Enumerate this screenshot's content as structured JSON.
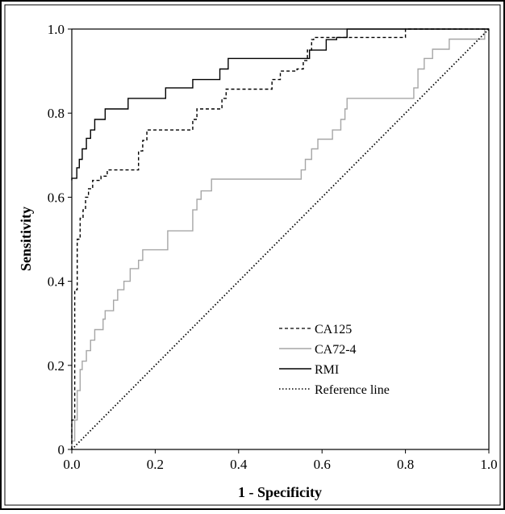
{
  "chart_data": {
    "type": "line",
    "title": "",
    "xlabel": "1 - Specificity",
    "ylabel": "Sensitivity",
    "xlim": [
      0,
      1
    ],
    "ylim": [
      0,
      1
    ],
    "xticks": [
      "0.0",
      "0.2",
      "0.4",
      "0.6",
      "0.8",
      "1.0"
    ],
    "yticks": [
      "0",
      "0.2",
      "0.4",
      "0.6",
      "0.8",
      "1.0"
    ],
    "xtick_values": [
      0,
      0.2,
      0.4,
      0.6,
      0.8,
      1.0
    ],
    "ytick_values": [
      0,
      0.2,
      0.4,
      0.6,
      0.8,
      1.0
    ],
    "grid": false,
    "legend_position": "bottom-right",
    "series": [
      {
        "name": "CA125",
        "style": "dashed",
        "color": "#000000",
        "points": [
          [
            0,
            0
          ],
          [
            0,
            0.07
          ],
          [
            0.007,
            0.07
          ],
          [
            0.007,
            0.38
          ],
          [
            0.013,
            0.38
          ],
          [
            0.013,
            0.5
          ],
          [
            0.02,
            0.5
          ],
          [
            0.02,
            0.55
          ],
          [
            0.027,
            0.55
          ],
          [
            0.027,
            0.57
          ],
          [
            0.033,
            0.57
          ],
          [
            0.033,
            0.6
          ],
          [
            0.04,
            0.6
          ],
          [
            0.04,
            0.62
          ],
          [
            0.05,
            0.62
          ],
          [
            0.05,
            0.64
          ],
          [
            0.07,
            0.64
          ],
          [
            0.07,
            0.65
          ],
          [
            0.085,
            0.65
          ],
          [
            0.085,
            0.665
          ],
          [
            0.16,
            0.665
          ],
          [
            0.16,
            0.71
          ],
          [
            0.17,
            0.71
          ],
          [
            0.17,
            0.735
          ],
          [
            0.18,
            0.735
          ],
          [
            0.18,
            0.76
          ],
          [
            0.29,
            0.76
          ],
          [
            0.29,
            0.785
          ],
          [
            0.3,
            0.785
          ],
          [
            0.3,
            0.81
          ],
          [
            0.36,
            0.81
          ],
          [
            0.36,
            0.835
          ],
          [
            0.37,
            0.835
          ],
          [
            0.37,
            0.857
          ],
          [
            0.48,
            0.857
          ],
          [
            0.48,
            0.88
          ],
          [
            0.5,
            0.88
          ],
          [
            0.5,
            0.9
          ],
          [
            0.54,
            0.9
          ],
          [
            0.54,
            0.905
          ],
          [
            0.555,
            0.905
          ],
          [
            0.555,
            0.925
          ],
          [
            0.565,
            0.925
          ],
          [
            0.565,
            0.95
          ],
          [
            0.575,
            0.95
          ],
          [
            0.575,
            0.975
          ],
          [
            0.58,
            0.975
          ],
          [
            0.58,
            0.98
          ],
          [
            0.8,
            0.98
          ],
          [
            0.8,
            1.0
          ],
          [
            1,
            1
          ]
        ]
      },
      {
        "name": "CA72-4",
        "style": "solid",
        "color": "#a6a6a6",
        "points": [
          [
            0,
            0
          ],
          [
            0,
            0.02
          ],
          [
            0.007,
            0.02
          ],
          [
            0.007,
            0.07
          ],
          [
            0.013,
            0.07
          ],
          [
            0.013,
            0.14
          ],
          [
            0.02,
            0.14
          ],
          [
            0.02,
            0.19
          ],
          [
            0.025,
            0.19
          ],
          [
            0.025,
            0.21
          ],
          [
            0.035,
            0.21
          ],
          [
            0.035,
            0.235
          ],
          [
            0.045,
            0.235
          ],
          [
            0.045,
            0.26
          ],
          [
            0.055,
            0.26
          ],
          [
            0.055,
            0.285
          ],
          [
            0.075,
            0.285
          ],
          [
            0.075,
            0.31
          ],
          [
            0.08,
            0.31
          ],
          [
            0.08,
            0.33
          ],
          [
            0.1,
            0.33
          ],
          [
            0.1,
            0.355
          ],
          [
            0.11,
            0.355
          ],
          [
            0.11,
            0.38
          ],
          [
            0.125,
            0.38
          ],
          [
            0.125,
            0.4
          ],
          [
            0.14,
            0.4
          ],
          [
            0.14,
            0.43
          ],
          [
            0.16,
            0.43
          ],
          [
            0.16,
            0.45
          ],
          [
            0.17,
            0.45
          ],
          [
            0.17,
            0.475
          ],
          [
            0.23,
            0.475
          ],
          [
            0.23,
            0.52
          ],
          [
            0.29,
            0.52
          ],
          [
            0.29,
            0.57
          ],
          [
            0.3,
            0.57
          ],
          [
            0.3,
            0.595
          ],
          [
            0.31,
            0.595
          ],
          [
            0.31,
            0.615
          ],
          [
            0.335,
            0.615
          ],
          [
            0.335,
            0.643
          ],
          [
            0.55,
            0.643
          ],
          [
            0.55,
            0.665
          ],
          [
            0.56,
            0.665
          ],
          [
            0.56,
            0.69
          ],
          [
            0.575,
            0.69
          ],
          [
            0.575,
            0.715
          ],
          [
            0.59,
            0.715
          ],
          [
            0.59,
            0.738
          ],
          [
            0.625,
            0.738
          ],
          [
            0.625,
            0.76
          ],
          [
            0.645,
            0.76
          ],
          [
            0.645,
            0.785
          ],
          [
            0.655,
            0.785
          ],
          [
            0.655,
            0.81
          ],
          [
            0.66,
            0.81
          ],
          [
            0.66,
            0.835
          ],
          [
            0.82,
            0.835
          ],
          [
            0.82,
            0.86
          ],
          [
            0.83,
            0.86
          ],
          [
            0.83,
            0.905
          ],
          [
            0.845,
            0.905
          ],
          [
            0.845,
            0.93
          ],
          [
            0.865,
            0.93
          ],
          [
            0.865,
            0.952
          ],
          [
            0.905,
            0.952
          ],
          [
            0.905,
            0.976
          ],
          [
            0.99,
            0.976
          ],
          [
            0.99,
            1.0
          ],
          [
            1,
            1
          ]
        ]
      },
      {
        "name": "RMI",
        "style": "solid",
        "color": "#000000",
        "points": [
          [
            0,
            0.64
          ],
          [
            0,
            0.645
          ],
          [
            0.012,
            0.645
          ],
          [
            0.012,
            0.67
          ],
          [
            0.018,
            0.67
          ],
          [
            0.018,
            0.69
          ],
          [
            0.025,
            0.69
          ],
          [
            0.025,
            0.715
          ],
          [
            0.035,
            0.715
          ],
          [
            0.035,
            0.74
          ],
          [
            0.045,
            0.74
          ],
          [
            0.045,
            0.76
          ],
          [
            0.055,
            0.76
          ],
          [
            0.055,
            0.785
          ],
          [
            0.08,
            0.785
          ],
          [
            0.08,
            0.81
          ],
          [
            0.135,
            0.81
          ],
          [
            0.135,
            0.835
          ],
          [
            0.225,
            0.835
          ],
          [
            0.225,
            0.86
          ],
          [
            0.29,
            0.86
          ],
          [
            0.29,
            0.88
          ],
          [
            0.355,
            0.88
          ],
          [
            0.355,
            0.905
          ],
          [
            0.375,
            0.905
          ],
          [
            0.375,
            0.93
          ],
          [
            0.57,
            0.93
          ],
          [
            0.57,
            0.95
          ],
          [
            0.61,
            0.95
          ],
          [
            0.61,
            0.975
          ],
          [
            0.635,
            0.975
          ],
          [
            0.635,
            0.98
          ],
          [
            0.66,
            0.98
          ],
          [
            0.66,
            1.0
          ],
          [
            1,
            1
          ]
        ]
      },
      {
        "name": "Reference line",
        "style": "dotted",
        "color": "#000000",
        "points": [
          [
            0,
            0
          ],
          [
            1,
            1
          ]
        ]
      }
    ]
  }
}
